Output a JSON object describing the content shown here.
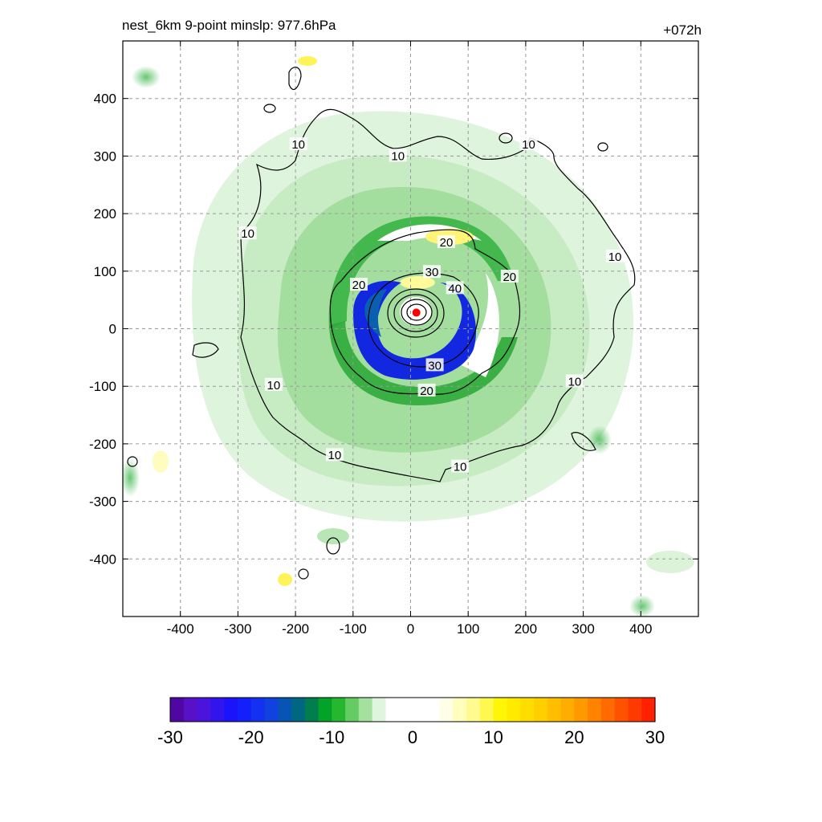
{
  "chart_data": {
    "type": "heatmap",
    "title": "nest_6km  9-point minslp: 977.6hPa",
    "time_label": "+072h",
    "xlim": [
      -500,
      500
    ],
    "ylim": [
      -500,
      500
    ],
    "x_ticks": [
      -400,
      -300,
      -200,
      -100,
      0,
      100,
      200,
      300,
      400
    ],
    "y_ticks": [
      -400,
      -300,
      -200,
      -100,
      0,
      100,
      200,
      300,
      400
    ],
    "grid": true,
    "colorbar": {
      "min": -30,
      "max": 30,
      "tick_values": [
        -30,
        -20,
        -10,
        0,
        10,
        20,
        30
      ],
      "tick_labels": [
        "-30",
        "-20",
        "-10",
        "0",
        "10",
        "20",
        "30"
      ]
    },
    "contour_labels": [
      {
        "text": "10",
        "x": -195,
        "y": 320
      },
      {
        "text": "10",
        "x": -22,
        "y": 300
      },
      {
        "text": "10",
        "x": 205,
        "y": 320
      },
      {
        "text": "10",
        "x": -283,
        "y": 165
      },
      {
        "text": "10",
        "x": 355,
        "y": 125
      },
      {
        "text": "10",
        "x": -238,
        "y": -98
      },
      {
        "text": "10",
        "x": 285,
        "y": -92
      },
      {
        "text": "10",
        "x": -132,
        "y": -220
      },
      {
        "text": "10",
        "x": 86,
        "y": -240
      },
      {
        "text": "20",
        "x": 62,
        "y": 150
      },
      {
        "text": "20",
        "x": -90,
        "y": 76
      },
      {
        "text": "20",
        "x": 172,
        "y": 90
      },
      {
        "text": "20",
        "x": 28,
        "y": -108
      },
      {
        "text": "30",
        "x": 37,
        "y": 98
      },
      {
        "text": "30",
        "x": 42,
        "y": -64
      },
      {
        "text": "40",
        "x": 77,
        "y": 70
      }
    ],
    "center_marker": {
      "x": 10,
      "y": 28,
      "color": "#ff0000"
    }
  }
}
